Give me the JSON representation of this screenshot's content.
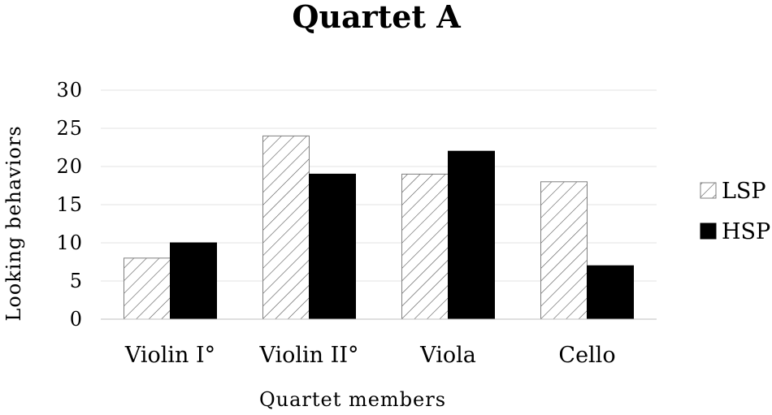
{
  "chart_data": {
    "type": "bar",
    "title": "Quartet A",
    "xlabel": "Quartet members",
    "ylabel": "Looking behaviors",
    "categories": [
      "Violin I°",
      "Violin II°",
      "Viola",
      "Cello"
    ],
    "series": [
      {
        "name": "LSP",
        "values": [
          8,
          24,
          19,
          18
        ],
        "fill": "hatched"
      },
      {
        "name": "HSP",
        "values": [
          10,
          19,
          22,
          7
        ],
        "fill": "#000000"
      }
    ],
    "ylim": [
      0,
      30
    ],
    "yticks": [
      0,
      5,
      10,
      15,
      20,
      25,
      30
    ],
    "grid": true,
    "legend": "right"
  }
}
